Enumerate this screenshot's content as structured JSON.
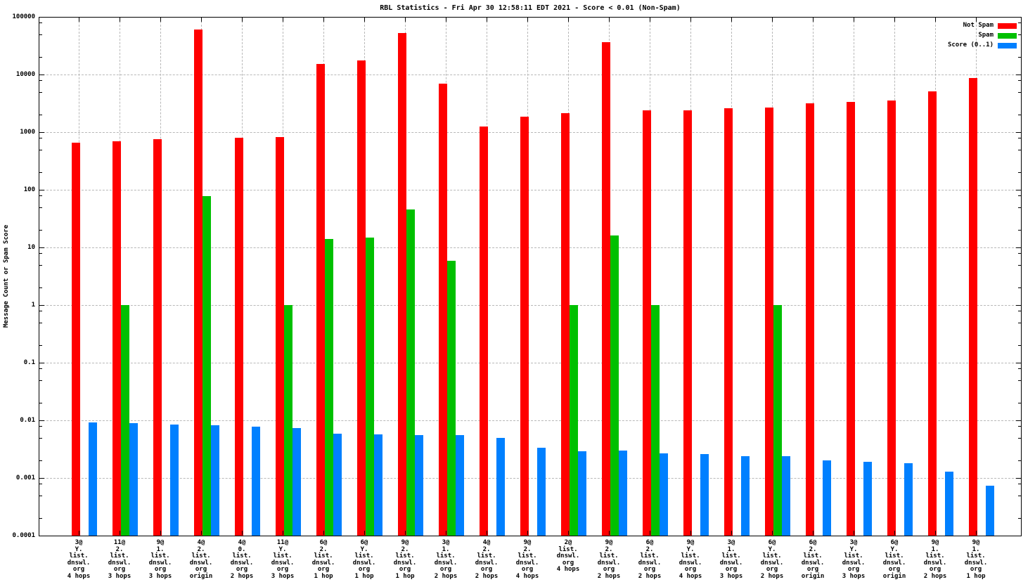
{
  "title": "RBL Statistics - Fri Apr 30 12:58:11 EDT 2021 - Score < 0.01 (Non-Spam)",
  "ylabel": "Message Count or Spam Score",
  "legend": [
    {
      "label": "Not Spam",
      "color": "#ff0000"
    },
    {
      "label": "Spam",
      "color": "#00c000"
    },
    {
      "label": "Score (0..1)",
      "color": "#0080ff"
    }
  ],
  "colors": {
    "not_spam": "#ff0000",
    "spam": "#00c000",
    "score": "#0080ff",
    "grid": "#b8b8b8",
    "border": "#000000"
  },
  "chart_data": {
    "type": "bar",
    "yscale": "log",
    "ylim": [
      0.0001,
      100000
    ],
    "grid": true,
    "legend_position": "top-right",
    "ytick_labels": [
      "100000",
      "10000",
      "1000",
      "100",
      "10",
      "1",
      "0.1",
      "0.01",
      "0.001",
      "0.0001"
    ],
    "series_names": [
      "Not Spam",
      "Spam",
      "Score (0..1)"
    ],
    "groups": [
      {
        "label_lines": [
          "3@",
          "Y.",
          "list.",
          "dnswl.",
          "org",
          "4 hops"
        ],
        "not_spam": 660,
        "spam": null,
        "score": 0.0092
      },
      {
        "label_lines": [
          "11@",
          "2.",
          "list.",
          "dnswl.",
          "org",
          "3 hops"
        ],
        "not_spam": 700,
        "spam": 1,
        "score": 0.0089
      },
      {
        "label_lines": [
          "9@",
          "1.",
          "list.",
          "dnswl.",
          "org",
          "3 hops"
        ],
        "not_spam": 745,
        "spam": null,
        "score": 0.0085
      },
      {
        "label_lines": [
          "4@",
          "2.",
          "list.",
          "dnswl.",
          "org",
          "origin"
        ],
        "not_spam": 60000,
        "spam": 77,
        "score": 0.0082
      },
      {
        "label_lines": [
          "4@",
          "0.",
          "list.",
          "dnswl.",
          "org",
          "2 hops"
        ],
        "not_spam": 810,
        "spam": null,
        "score": 0.0078
      },
      {
        "label_lines": [
          "11@",
          "Y.",
          "list.",
          "dnswl.",
          "org",
          "3 hops"
        ],
        "not_spam": 830,
        "spam": 1,
        "score": 0.0073
      },
      {
        "label_lines": [
          "6@",
          "2.",
          "list.",
          "dnswl.",
          "org",
          "1 hop"
        ],
        "not_spam": 15300,
        "spam": 14,
        "score": 0.0058
      },
      {
        "label_lines": [
          "6@",
          "Y.",
          "list.",
          "dnswl.",
          "org",
          "1 hop"
        ],
        "not_spam": 17400,
        "spam": 15,
        "score": 0.0057
      },
      {
        "label_lines": [
          "9@",
          "2.",
          "list.",
          "dnswl.",
          "org",
          "1 hop"
        ],
        "not_spam": 53000,
        "spam": 46,
        "score": 0.0056
      },
      {
        "label_lines": [
          "3@",
          "1.",
          "list.",
          "dnswl.",
          "org",
          "2 hops"
        ],
        "not_spam": 6900,
        "spam": 5.9,
        "score": 0.0056
      },
      {
        "label_lines": [
          "4@",
          "2.",
          "list.",
          "dnswl.",
          "org",
          "2 hops"
        ],
        "not_spam": 1250,
        "spam": null,
        "score": 0.0049
      },
      {
        "label_lines": [
          "9@",
          "2.",
          "list.",
          "dnswl.",
          "org",
          "4 hops"
        ],
        "not_spam": 1850,
        "spam": null,
        "score": 0.0033
      },
      {
        "label_lines": [
          "2@",
          "list.",
          "dnswl.",
          "org",
          "4 hops"
        ],
        "not_spam": 2140,
        "spam": 1,
        "score": 0.0029
      },
      {
        "label_lines": [
          "9@",
          "2.",
          "list.",
          "dnswl.",
          "org",
          "2 hops"
        ],
        "not_spam": 36000,
        "spam": 16,
        "score": 0.003
      },
      {
        "label_lines": [
          "6@",
          "2.",
          "list.",
          "dnswl.",
          "org",
          "2 hops"
        ],
        "not_spam": 2360,
        "spam": 1,
        "score": 0.0027
      },
      {
        "label_lines": [
          "9@",
          "Y.",
          "list.",
          "dnswl.",
          "org",
          "4 hops"
        ],
        "not_spam": 2400,
        "spam": null,
        "score": 0.0026
      },
      {
        "label_lines": [
          "3@",
          "1.",
          "list.",
          "dnswl.",
          "org",
          "3 hops"
        ],
        "not_spam": 2570,
        "spam": null,
        "score": 0.0024
      },
      {
        "label_lines": [
          "6@",
          "Y.",
          "list.",
          "dnswl.",
          "org",
          "2 hops"
        ],
        "not_spam": 2700,
        "spam": 1,
        "score": 0.0024
      },
      {
        "label_lines": [
          "6@",
          "2.",
          "list.",
          "dnswl.",
          "org",
          "origin"
        ],
        "not_spam": 3130,
        "spam": null,
        "score": 0.002
      },
      {
        "label_lines": [
          "3@",
          "Y.",
          "list.",
          "dnswl.",
          "org",
          "3 hops"
        ],
        "not_spam": 3340,
        "spam": null,
        "score": 0.0019
      },
      {
        "label_lines": [
          "6@",
          "Y.",
          "list.",
          "dnswl.",
          "org",
          "origin"
        ],
        "not_spam": 3530,
        "spam": null,
        "score": 0.0018
      },
      {
        "label_lines": [
          "9@",
          "1.",
          "list.",
          "dnswl.",
          "org",
          "2 hops"
        ],
        "not_spam": 5060,
        "spam": null,
        "score": 0.0013
      },
      {
        "label_lines": [
          "9@",
          "1.",
          "list.",
          "dnswl.",
          "org",
          "1 hop"
        ],
        "not_spam": 8640,
        "spam": null,
        "score": 0.00073
      }
    ]
  }
}
